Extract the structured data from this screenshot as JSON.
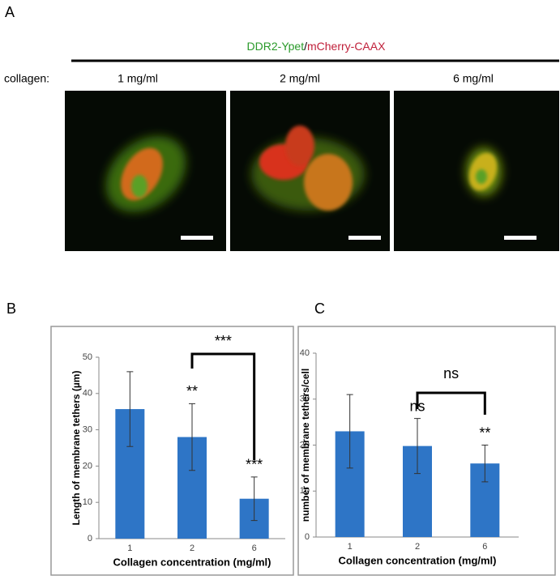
{
  "panel_a": {
    "label": "A",
    "title_parts": [
      "DDR2-Ypet",
      "/",
      "mCherry-CAAX"
    ],
    "row_label": "collagen:",
    "columns": [
      "1 mg/ml",
      "2 mg/ml",
      "6 mg/ml"
    ]
  },
  "chart_data": [
    {
      "type": "bar",
      "panel_label": "B",
      "ylabel": "Length of membrane tethers (µm)",
      "xlabel": "Collagen concentration (mg/ml)",
      "categories": [
        "1",
        "2",
        "6"
      ],
      "values": [
        35.7,
        28,
        11
      ],
      "errors": [
        10.3,
        9.2,
        6
      ],
      "color": "#2e75c6",
      "value_annotations": [
        null,
        "**",
        "***"
      ],
      "bracket_label": "***",
      "ylim": [
        0,
        50
      ],
      "yticks": [
        0,
        10,
        20,
        30,
        40,
        50
      ]
    },
    {
      "type": "bar",
      "panel_label": "C",
      "ylabel": "number of membrane tethers/cell",
      "xlabel": "Collagen concentration (mg/ml)",
      "categories": [
        "1",
        "2",
        "6"
      ],
      "values": [
        23,
        19.8,
        16
      ],
      "errors": [
        8,
        6,
        4
      ],
      "color": "#2e75c6",
      "value_annotations": [
        null,
        "ns",
        "**"
      ],
      "bracket_label": "ns",
      "ylim": [
        0,
        40
      ],
      "yticks": [
        0,
        10,
        20,
        30,
        40
      ]
    }
  ]
}
